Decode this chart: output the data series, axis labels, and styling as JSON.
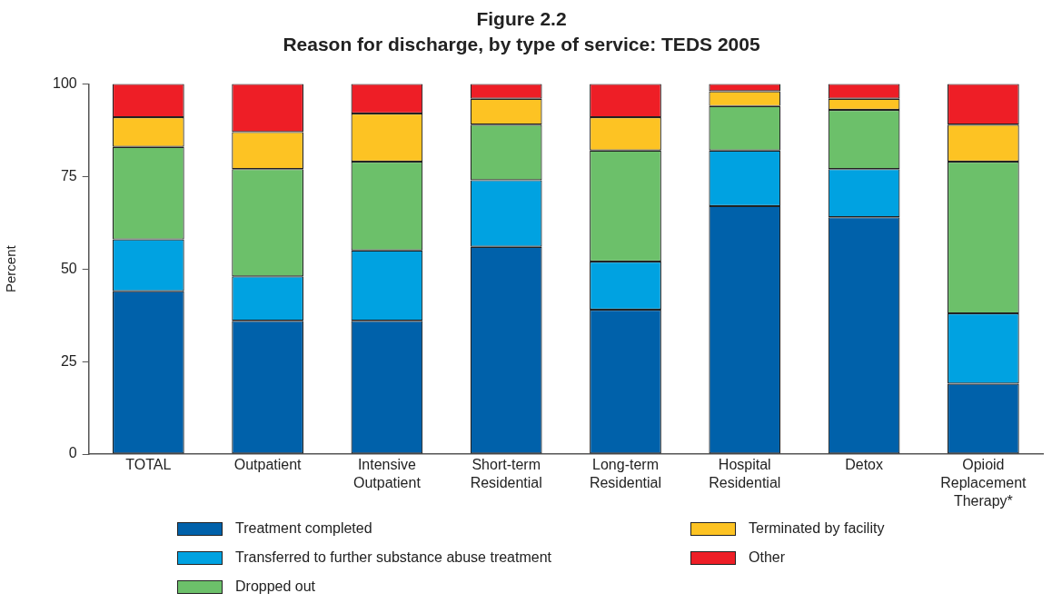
{
  "chart_data": {
    "type": "bar",
    "stacked": true,
    "title": "Figure 2.2",
    "subtitle": "Reason for discharge, by type of service: TEDS 2005",
    "ylabel": "Percent",
    "categories": [
      "TOTAL",
      "Outpatient",
      "Intensive Outpatient",
      "Short-term Residential",
      "Long-term Residential",
      "Hospital Residential",
      "Detox",
      "Opioid Replacement Therapy*"
    ],
    "series": [
      {
        "name": "Treatment completed",
        "color": "#0061aa",
        "values": [
          44,
          36,
          36,
          56,
          39,
          67,
          64,
          19
        ]
      },
      {
        "name": "Transferred to further substance abuse treatment",
        "color": "#00a2e1",
        "values": [
          14,
          12,
          19,
          18,
          13,
          15,
          13,
          19
        ]
      },
      {
        "name": "Dropped out",
        "color": "#6cc06a",
        "values": [
          25,
          29,
          24,
          15,
          30,
          12,
          16,
          41
        ]
      },
      {
        "name": "Terminated by facility",
        "color": "#fdc323",
        "values": [
          8,
          10,
          13,
          7,
          9,
          4,
          3,
          10
        ]
      },
      {
        "name": "Other",
        "color": "#ee1e26",
        "values": [
          9,
          13,
          8,
          4,
          9,
          2,
          4,
          11
        ]
      }
    ],
    "ylim": [
      0,
      100
    ],
    "yticks": [
      0,
      25,
      50,
      75,
      100
    ],
    "grid": false,
    "legend": "bottom"
  }
}
